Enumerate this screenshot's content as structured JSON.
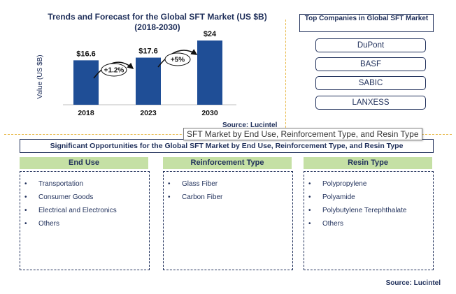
{
  "chart_data": {
    "type": "bar",
    "title": "Trends and Forecast for the Global SFT Market (US $B)",
    "subtitle": "(2018-2030)",
    "ylabel": "Value (US $B)",
    "categories": [
      "2018",
      "2023",
      "2030"
    ],
    "values": [
      16.6,
      17.6,
      24
    ],
    "data_labels": [
      "$16.6",
      "$17.6",
      "$24"
    ],
    "growth_annotations": [
      "+1.2%",
      "+5%"
    ],
    "bar_color": "#1f4e96",
    "ylim": [
      0,
      30
    ],
    "grid": false,
    "source": "Source: Lucintel"
  },
  "tooltip": "SFT Market by End Use, Reinforcement Type, and Resin Type",
  "companies": {
    "header": "Top Companies in Global SFT Market",
    "items": [
      "DuPont",
      "BASF",
      "SABIC",
      "LANXESS"
    ]
  },
  "opportunities": {
    "banner": "Significant Opportunities for the Global SFT Market by End Use, Reinforcement Type, and Resin Type",
    "segments": [
      {
        "title": "End Use",
        "items": [
          "Transportation",
          "Consumer Goods",
          "Electrical and Electronics",
          "Others"
        ]
      },
      {
        "title": "Reinforcement Type",
        "items": [
          "Glass Fiber",
          "Carbon Fiber"
        ]
      },
      {
        "title": "Resin Type",
        "items": [
          "Polypropylene",
          "Polyamide",
          "Polybutylene Terephthalate",
          "Others"
        ]
      }
    ]
  },
  "source_bottom": "Source: Lucintel",
  "colors": {
    "accent_green": "#c5e0a5",
    "navy": "#1f2f5a",
    "divider": "#e8b94a"
  }
}
